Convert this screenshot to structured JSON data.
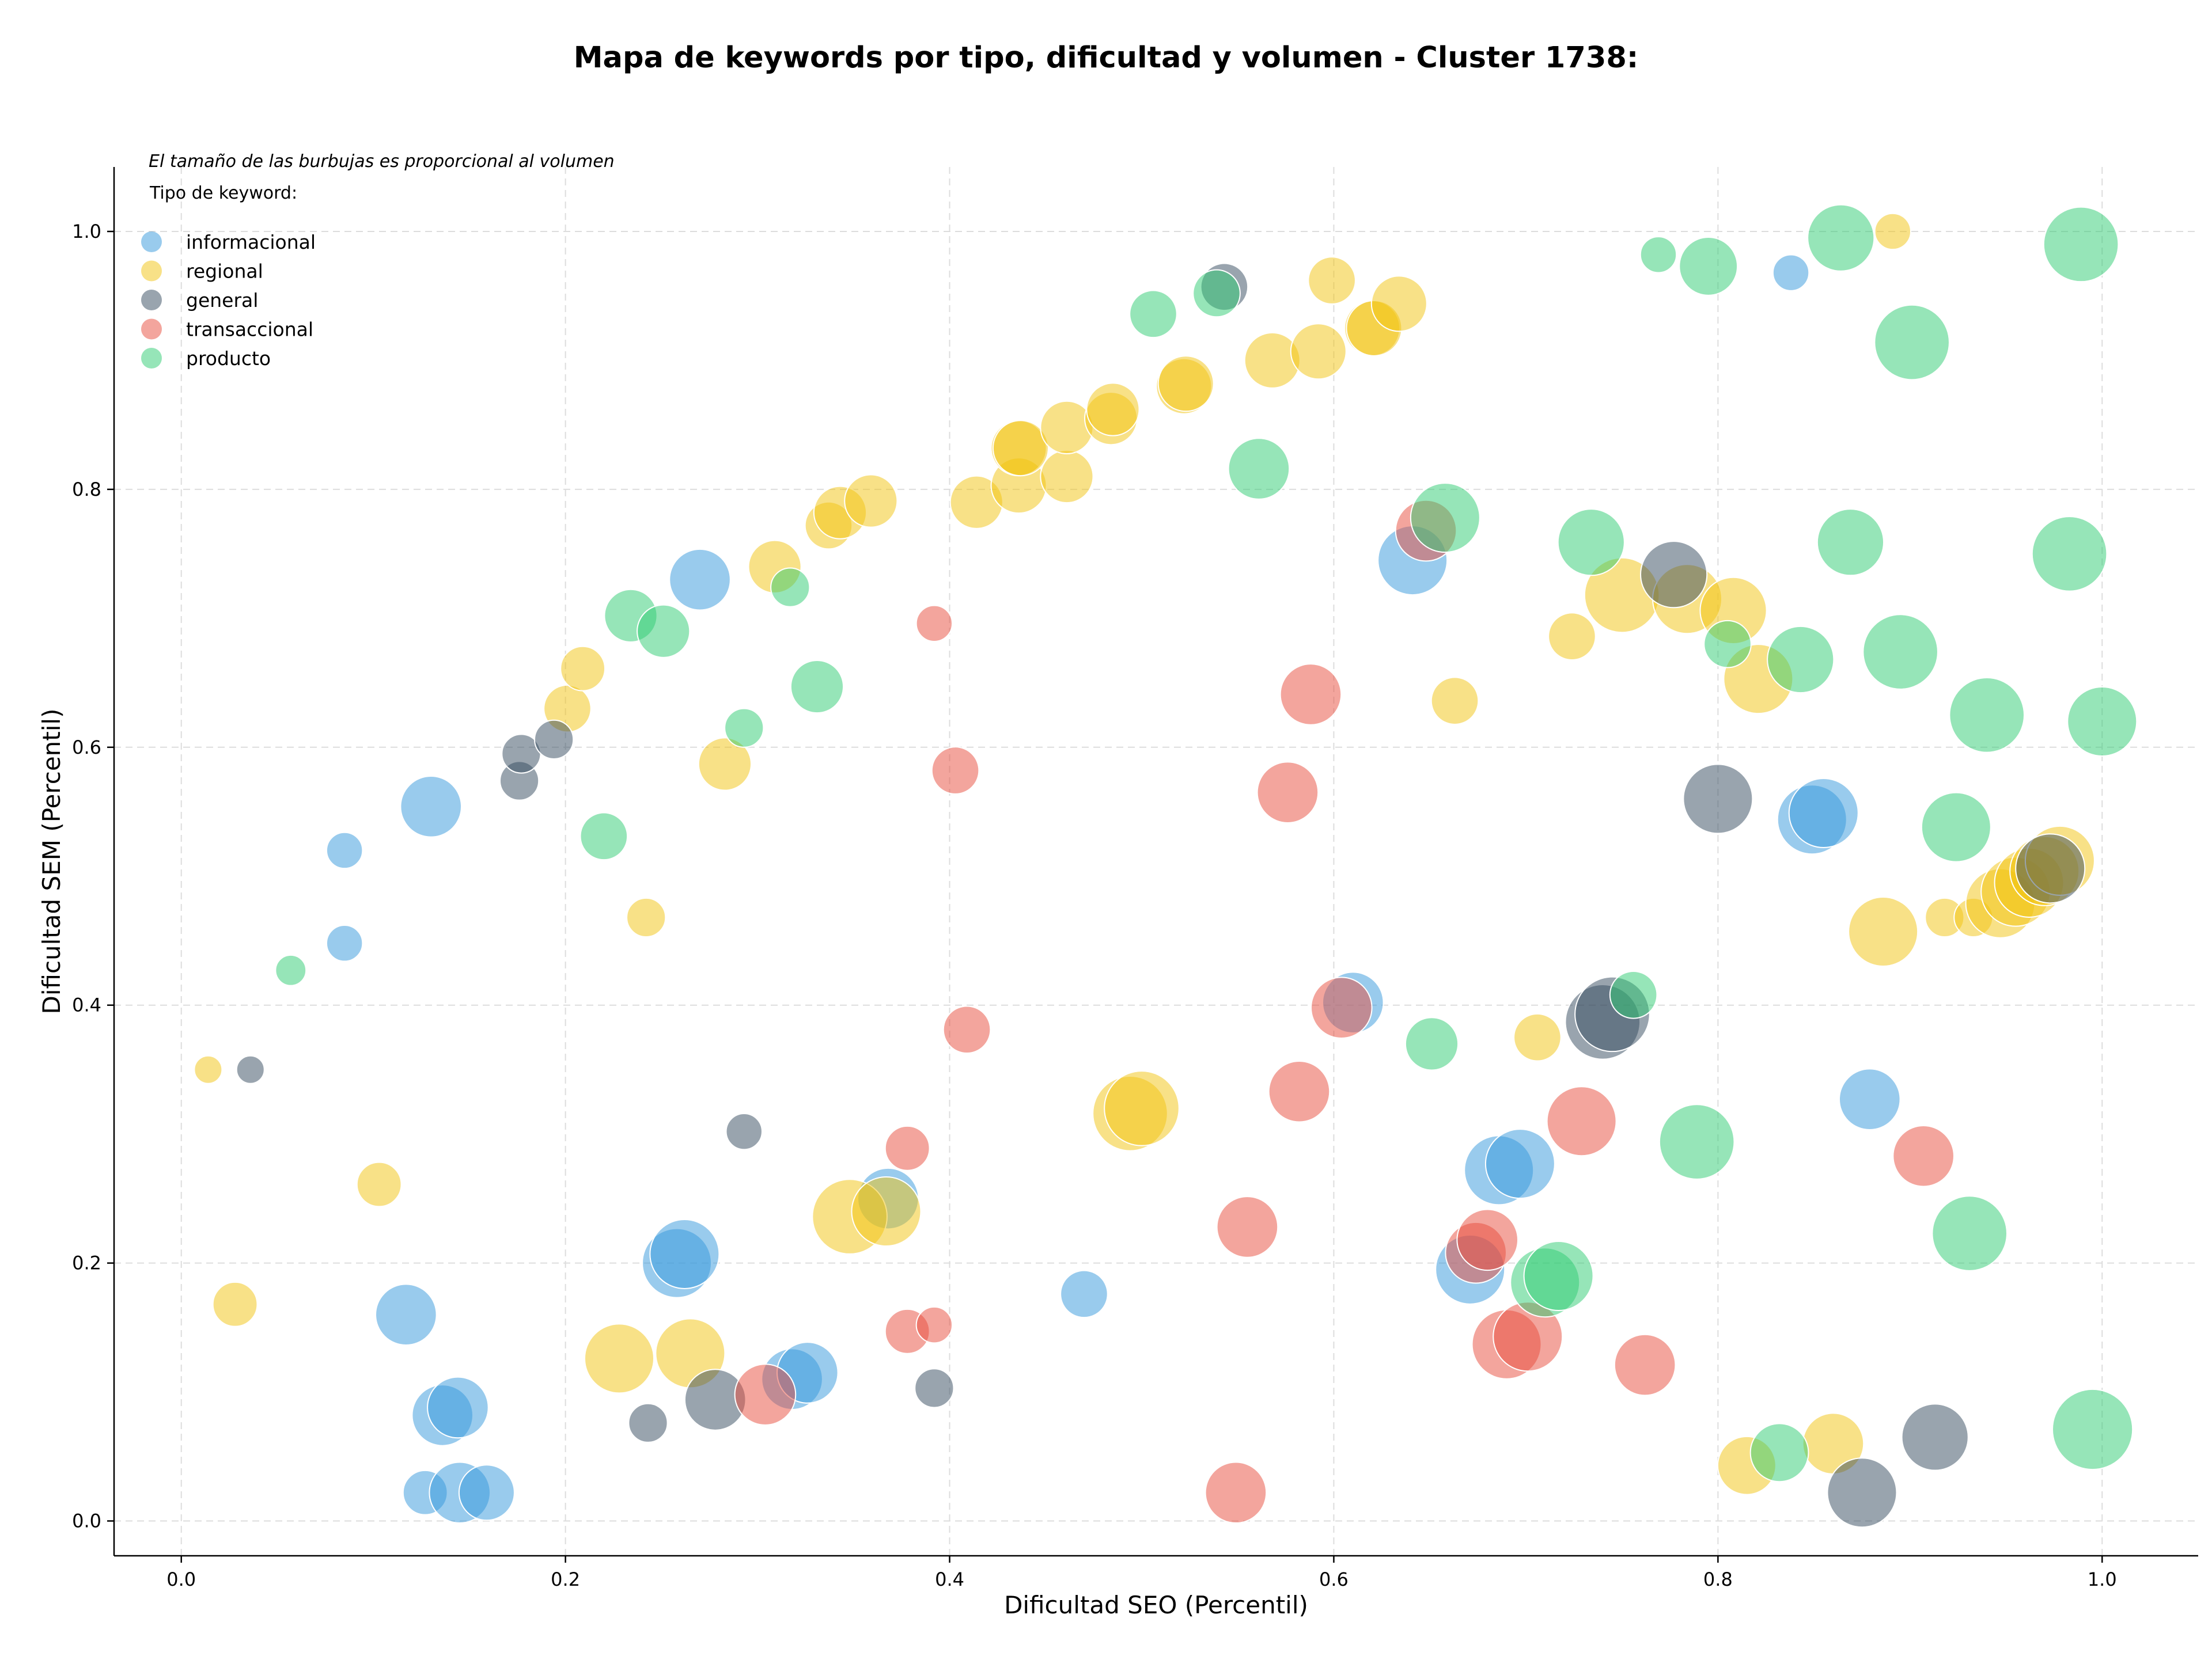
{
  "chart_data": {
    "type": "scatter",
    "title": "Mapa de keywords por tipo, dificultad y volumen - Cluster 1738:",
    "xlabel": "Dificultad SEO (Percentil)",
    "ylabel": "Dificultad SEM (Percentil)",
    "xlim": [
      -0.035,
      1.05
    ],
    "ylim": [
      -0.027,
      1.05
    ],
    "xticks": [
      "0.0",
      "0.2",
      "0.4",
      "0.6",
      "0.8",
      "1.0"
    ],
    "yticks": [
      "0.0",
      "0.2",
      "0.4",
      "0.6",
      "0.8",
      "1.0"
    ],
    "grid": true,
    "legend_position": "top-left",
    "legend_note": "El tamaño de las burbujas es proporcional al volumen",
    "legend_title": "Tipo de keyword:",
    "series": [
      {
        "name": "informacional",
        "color": "#3498db",
        "points": [
          [
            0.085,
            0.52,
            13
          ],
          [
            0.085,
            0.448,
            13
          ],
          [
            0.13,
            0.554,
            22
          ],
          [
            0.117,
            0.16,
            22
          ],
          [
            0.127,
            0.022,
            16
          ],
          [
            0.136,
            0.082,
            22
          ],
          [
            0.144,
            0.088,
            22
          ],
          [
            0.145,
            0.022,
            22
          ],
          [
            0.159,
            0.022,
            20
          ],
          [
            0.27,
            0.73,
            22
          ],
          [
            0.258,
            0.2,
            25
          ],
          [
            0.262,
            0.207,
            25
          ],
          [
            0.318,
            0.11,
            22
          ],
          [
            0.326,
            0.115,
            22
          ],
          [
            0.368,
            0.25,
            22
          ],
          [
            0.47,
            0.176,
            17
          ],
          [
            0.61,
            0.402,
            22
          ],
          [
            0.641,
            0.745,
            25
          ],
          [
            0.671,
            0.195,
            25
          ],
          [
            0.686,
            0.272,
            25
          ],
          [
            0.697,
            0.277,
            25
          ],
          [
            0.838,
            0.968,
            13
          ],
          [
            0.879,
            0.327,
            22
          ],
          [
            0.849,
            0.544,
            25
          ],
          [
            0.855,
            0.549,
            25
          ]
        ]
      },
      {
        "name": "regional",
        "color": "#f1c40f",
        "points": [
          [
            0.014,
            0.35,
            10
          ],
          [
            0.028,
            0.168,
            16
          ],
          [
            0.103,
            0.261,
            16
          ],
          [
            0.201,
            0.63,
            17
          ],
          [
            0.209,
            0.661,
            16
          ],
          [
            0.242,
            0.468,
            14
          ],
          [
            0.228,
            0.126,
            25
          ],
          [
            0.265,
            0.13,
            25
          ],
          [
            0.283,
            0.587,
            19
          ],
          [
            0.309,
            0.74,
            19
          ],
          [
            0.337,
            0.772,
            17
          ],
          [
            0.343,
            0.782,
            19
          ],
          [
            0.359,
            0.791,
            19
          ],
          [
            0.348,
            0.236,
            27
          ],
          [
            0.367,
            0.24,
            25
          ],
          [
            0.414,
            0.79,
            19
          ],
          [
            0.436,
            0.803,
            20
          ],
          [
            0.436,
            0.832,
            20
          ],
          [
            0.437,
            0.832,
            20
          ],
          [
            0.461,
            0.81,
            19
          ],
          [
            0.461,
            0.848,
            19
          ],
          [
            0.484,
            0.855,
            19
          ],
          [
            0.485,
            0.862,
            19
          ],
          [
            0.522,
            0.88,
            20
          ],
          [
            0.523,
            0.882,
            20
          ],
          [
            0.494,
            0.316,
            27
          ],
          [
            0.5,
            0.32,
            27
          ],
          [
            0.568,
            0.9,
            20
          ],
          [
            0.592,
            0.907,
            20
          ],
          [
            0.599,
            0.962,
            17
          ],
          [
            0.62,
            0.925,
            20
          ],
          [
            0.621,
            0.925,
            20
          ],
          [
            0.634,
            0.944,
            20
          ],
          [
            0.663,
            0.636,
            17
          ],
          [
            0.706,
            0.375,
            17
          ],
          [
            0.724,
            0.686,
            17
          ],
          [
            0.75,
            0.718,
            27
          ],
          [
            0.784,
            0.715,
            25
          ],
          [
            0.808,
            0.706,
            24
          ],
          [
            0.821,
            0.653,
            25
          ],
          [
            0.891,
            1.0,
            13
          ],
          [
            0.886,
            0.457,
            25
          ],
          [
            0.86,
            0.06,
            22
          ],
          [
            0.815,
            0.043,
            21
          ],
          [
            0.918,
            0.468,
            14
          ],
          [
            0.933,
            0.468,
            14
          ],
          [
            0.947,
            0.479,
            25
          ],
          [
            0.955,
            0.488,
            25
          ],
          [
            0.962,
            0.495,
            25
          ],
          [
            0.97,
            0.504,
            25
          ],
          [
            0.978,
            0.512,
            25
          ]
        ]
      },
      {
        "name": "general",
        "color": "#34495e",
        "points": [
          [
            0.036,
            0.35,
            10
          ],
          [
            0.176,
            0.574,
            14
          ],
          [
            0.177,
            0.595,
            14
          ],
          [
            0.194,
            0.606,
            14
          ],
          [
            0.293,
            0.302,
            13
          ],
          [
            0.243,
            0.076,
            14
          ],
          [
            0.278,
            0.094,
            22
          ],
          [
            0.392,
            0.103,
            14
          ],
          [
            0.543,
            0.957,
            17
          ],
          [
            0.74,
            0.387,
            27
          ],
          [
            0.745,
            0.393,
            27
          ],
          [
            0.777,
            0.734,
            24
          ],
          [
            0.8,
            0.56,
            25
          ],
          [
            0.875,
            0.022,
            25
          ],
          [
            0.913,
            0.065,
            24
          ],
          [
            0.973,
            0.506,
            25
          ]
        ]
      },
      {
        "name": "transaccional",
        "color": "#e74c3c",
        "points": [
          [
            0.392,
            0.696,
            13
          ],
          [
            0.403,
            0.582,
            17
          ],
          [
            0.409,
            0.381,
            17
          ],
          [
            0.378,
            0.289,
            16
          ],
          [
            0.378,
            0.147,
            16
          ],
          [
            0.392,
            0.152,
            13
          ],
          [
            0.304,
            0.098,
            22
          ],
          [
            0.555,
            0.228,
            22
          ],
          [
            0.576,
            0.565,
            22
          ],
          [
            0.582,
            0.333,
            22
          ],
          [
            0.588,
            0.641,
            22
          ],
          [
            0.604,
            0.398,
            22
          ],
          [
            0.648,
            0.768,
            22
          ],
          [
            0.674,
            0.208,
            22
          ],
          [
            0.68,
            0.218,
            22
          ],
          [
            0.69,
            0.137,
            25
          ],
          [
            0.701,
            0.143,
            25
          ],
          [
            0.729,
            0.31,
            25
          ],
          [
            0.762,
            0.121,
            22
          ],
          [
            0.907,
            0.283,
            22
          ],
          [
            0.549,
            0.022,
            22
          ]
        ]
      },
      {
        "name": "producto",
        "color": "#2ecc71",
        "points": [
          [
            0.057,
            0.427,
            11
          ],
          [
            0.22,
            0.531,
            17
          ],
          [
            0.234,
            0.702,
            19
          ],
          [
            0.251,
            0.69,
            19
          ],
          [
            0.293,
            0.615,
            14
          ],
          [
            0.317,
            0.724,
            14
          ],
          [
            0.331,
            0.647,
            19
          ],
          [
            0.506,
            0.936,
            17
          ],
          [
            0.539,
            0.952,
            17
          ],
          [
            0.561,
            0.816,
            22
          ],
          [
            0.658,
            0.778,
            25
          ],
          [
            0.651,
            0.37,
            19
          ],
          [
            0.734,
            0.759,
            24
          ],
          [
            0.756,
            0.408,
            17
          ],
          [
            0.769,
            0.982,
            13
          ],
          [
            0.795,
            0.973,
            21
          ],
          [
            0.789,
            0.294,
            27
          ],
          [
            0.805,
            0.68,
            17
          ],
          [
            0.832,
            0.053,
            21
          ],
          [
            0.843,
            0.668,
            24
          ],
          [
            0.864,
            0.995,
            24
          ],
          [
            0.869,
            0.759,
            24
          ],
          [
            0.895,
            0.674,
            27
          ],
          [
            0.901,
            0.914,
            27
          ],
          [
            0.924,
            0.538,
            25
          ],
          [
            0.931,
            0.223,
            27
          ],
          [
            0.94,
            0.625,
            27
          ],
          [
            0.983,
            0.75,
            27
          ],
          [
            0.989,
            0.99,
            27
          ],
          [
            0.995,
            0.071,
            29
          ],
          [
            1.0,
            0.62,
            25
          ],
          [
            0.71,
            0.185,
            25
          ],
          [
            0.717,
            0.19,
            25
          ]
        ]
      }
    ]
  }
}
